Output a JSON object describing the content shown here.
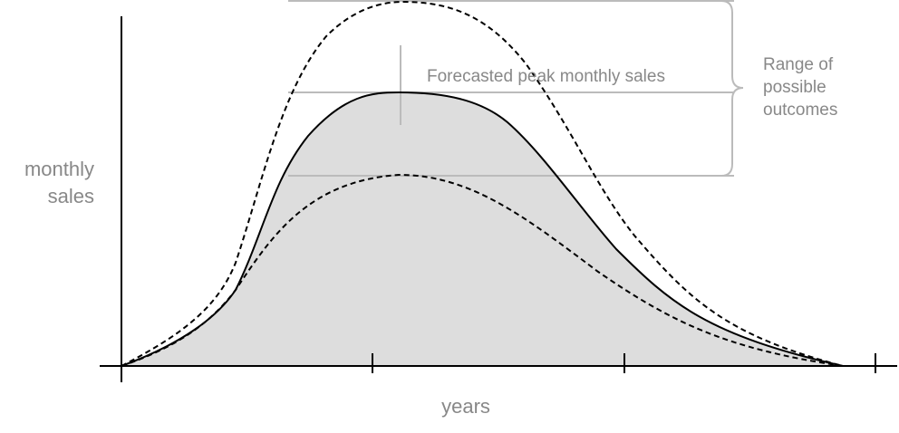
{
  "y_axis_label": [
    "monthly",
    "sales"
  ],
  "x_axis_label": "years",
  "peak_annotation": "Forecasted peak monthly sales",
  "range_annotation": [
    "Range of",
    "possible",
    "outcomes"
  ]
}
